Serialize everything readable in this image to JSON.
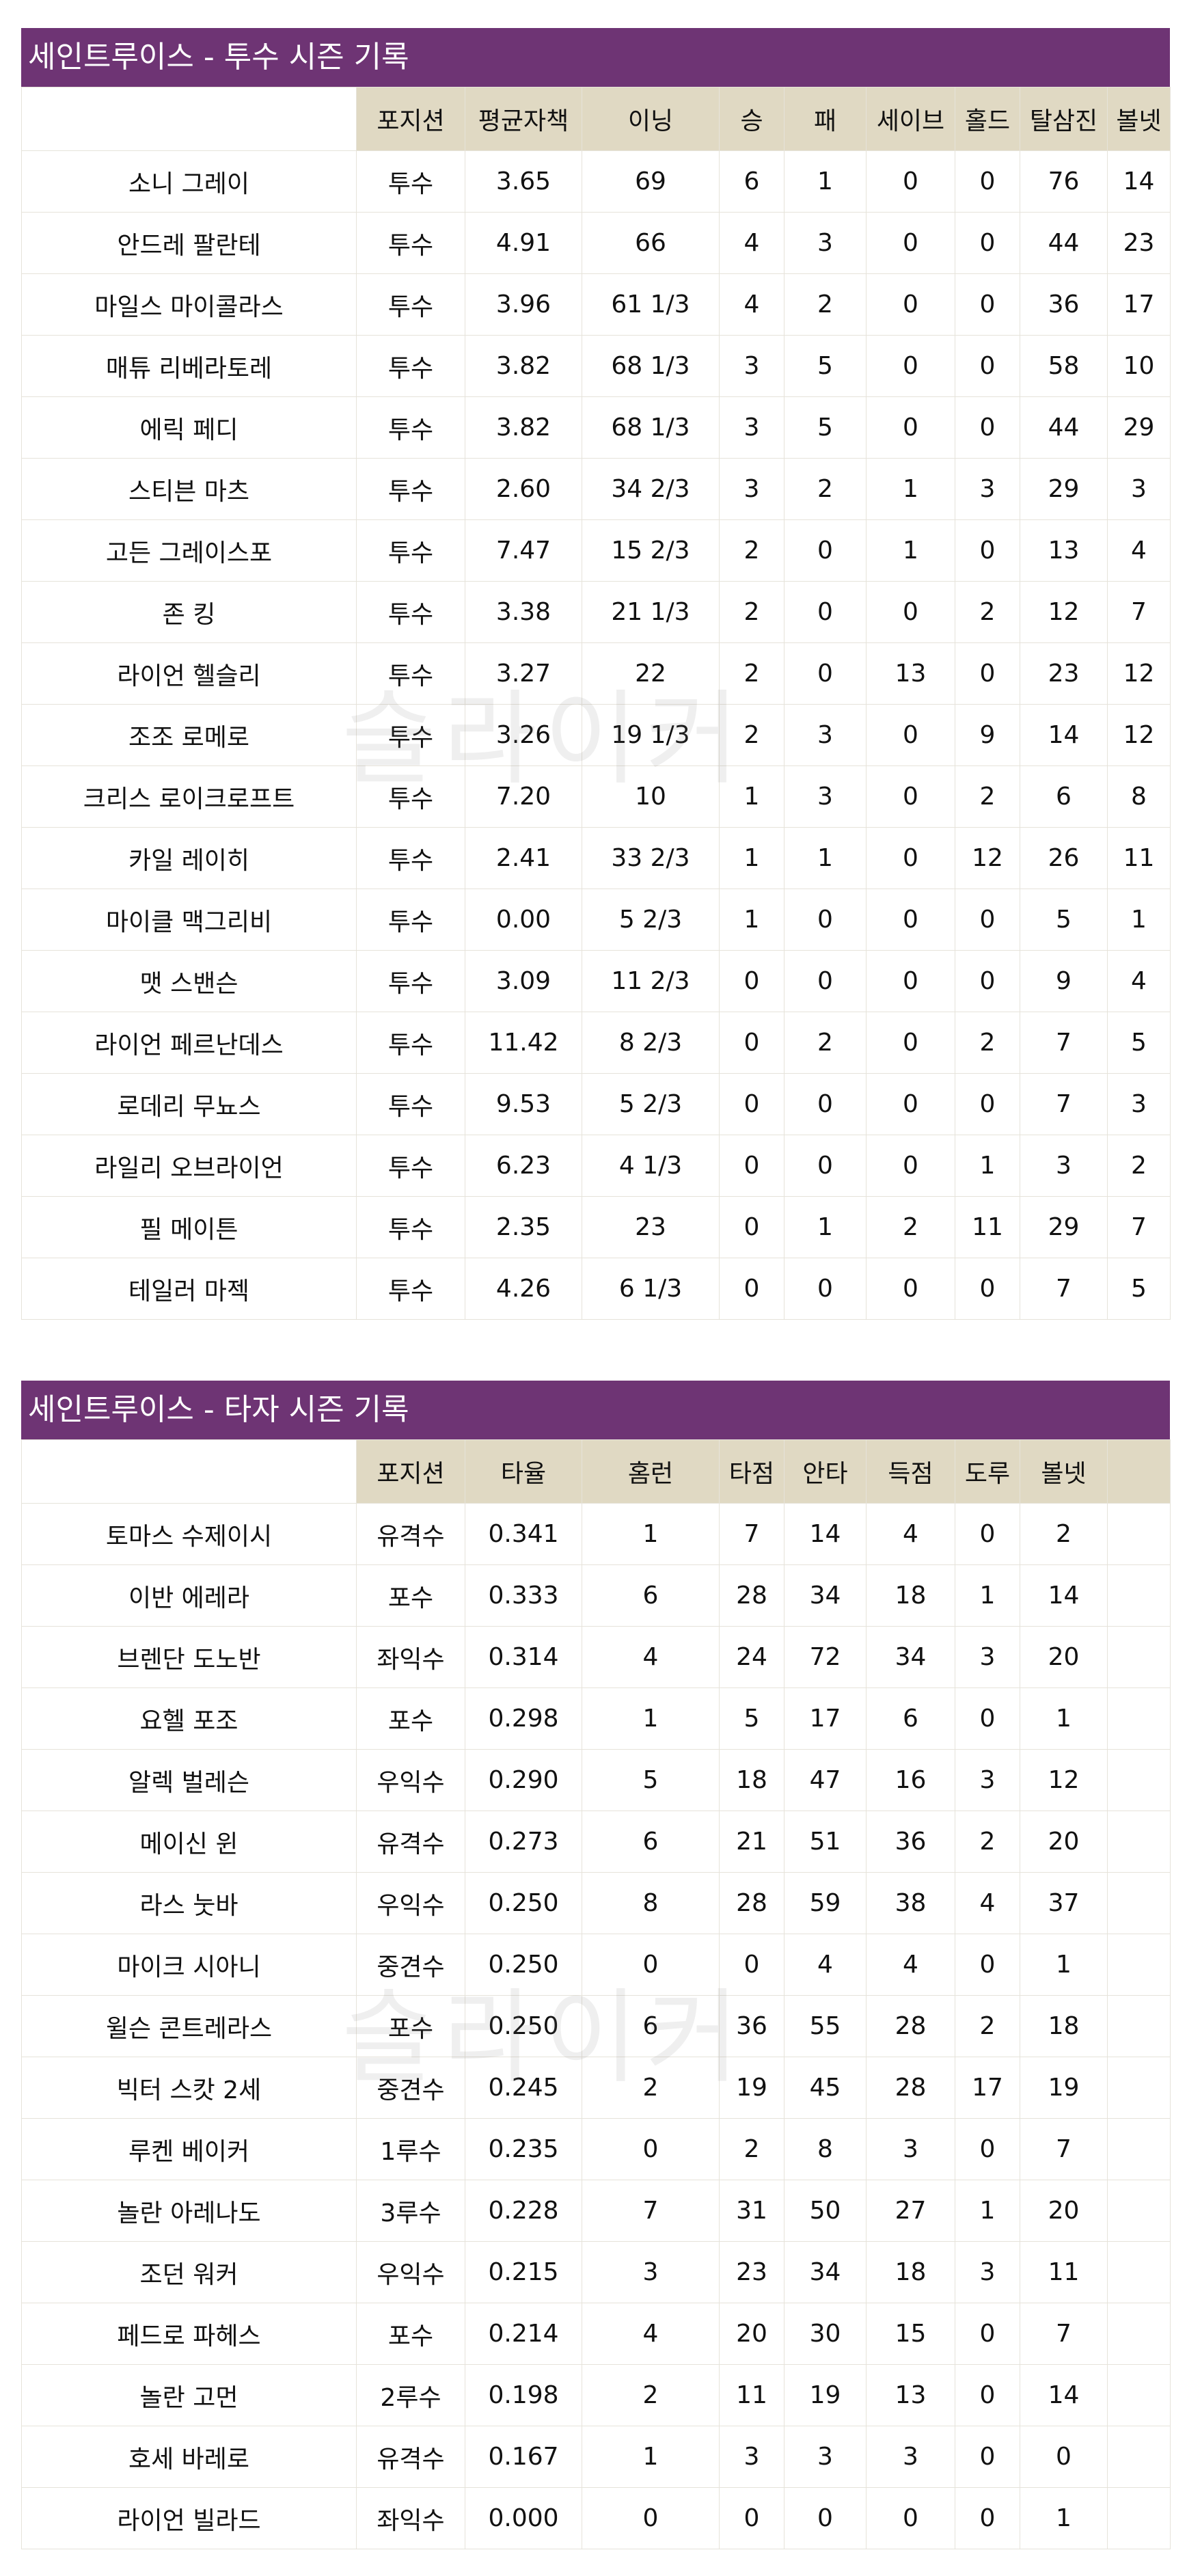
{
  "watermark": "슬라이커",
  "colors": {
    "title_bg": "#6e3474",
    "header_bg": "#e0d9c3",
    "grid": "#e6e3da"
  },
  "pitching": {
    "title": "세인트루이스 - 투수 시즌 기록",
    "columns": [
      "",
      "포지션",
      "평균자책",
      "이닝",
      "승",
      "패",
      "세이브",
      "홀드",
      "탈삼진",
      "볼넷"
    ],
    "rows": [
      [
        "소니 그레이",
        "투수",
        "3.65",
        "69",
        "6",
        "1",
        "0",
        "0",
        "76",
        "14"
      ],
      [
        "안드레 팔란테",
        "투수",
        "4.91",
        "66",
        "4",
        "3",
        "0",
        "0",
        "44",
        "23"
      ],
      [
        "마일스 마이콜라스",
        "투수",
        "3.96",
        "61 1/3",
        "4",
        "2",
        "0",
        "0",
        "36",
        "17"
      ],
      [
        "매튜 리베라토레",
        "투수",
        "3.82",
        "68 1/3",
        "3",
        "5",
        "0",
        "0",
        "58",
        "10"
      ],
      [
        "에릭 페디",
        "투수",
        "3.82",
        "68 1/3",
        "3",
        "5",
        "0",
        "0",
        "44",
        "29"
      ],
      [
        "스티븐 마츠",
        "투수",
        "2.60",
        "34 2/3",
        "3",
        "2",
        "1",
        "3",
        "29",
        "3"
      ],
      [
        "고든 그레이스포",
        "투수",
        "7.47",
        "15 2/3",
        "2",
        "0",
        "1",
        "0",
        "13",
        "4"
      ],
      [
        "존 킹",
        "투수",
        "3.38",
        "21 1/3",
        "2",
        "0",
        "0",
        "2",
        "12",
        "7"
      ],
      [
        "라이언 헬슬리",
        "투수",
        "3.27",
        "22",
        "2",
        "0",
        "13",
        "0",
        "23",
        "12"
      ],
      [
        "조조 로메로",
        "투수",
        "3.26",
        "19 1/3",
        "2",
        "3",
        "0",
        "9",
        "14",
        "12"
      ],
      [
        "크리스 로이크로프트",
        "투수",
        "7.20",
        "10",
        "1",
        "3",
        "0",
        "2",
        "6",
        "8"
      ],
      [
        "카일 레이히",
        "투수",
        "2.41",
        "33 2/3",
        "1",
        "1",
        "0",
        "12",
        "26",
        "11"
      ],
      [
        "마이클 맥그리비",
        "투수",
        "0.00",
        "5 2/3",
        "1",
        "0",
        "0",
        "0",
        "5",
        "1"
      ],
      [
        "맷 스밴슨",
        "투수",
        "3.09",
        "11 2/3",
        "0",
        "0",
        "0",
        "0",
        "9",
        "4"
      ],
      [
        "라이언 페르난데스",
        "투수",
        "11.42",
        "8 2/3",
        "0",
        "2",
        "0",
        "2",
        "7",
        "5"
      ],
      [
        "로데리 무뇨스",
        "투수",
        "9.53",
        "5 2/3",
        "0",
        "0",
        "0",
        "0",
        "7",
        "3"
      ],
      [
        "라일리 오브라이언",
        "투수",
        "6.23",
        "4 1/3",
        "0",
        "0",
        "0",
        "1",
        "3",
        "2"
      ],
      [
        "필 메이튼",
        "투수",
        "2.35",
        "23",
        "0",
        "1",
        "2",
        "11",
        "29",
        "7"
      ],
      [
        "테일러 마젝",
        "투수",
        "4.26",
        "6 1/3",
        "0",
        "0",
        "0",
        "0",
        "7",
        "5"
      ]
    ]
  },
  "batting": {
    "title": "세인트루이스 - 타자 시즌 기록",
    "columns": [
      "",
      "포지션",
      "타율",
      "홈런",
      "타점",
      "안타",
      "득점",
      "도루",
      "볼넷",
      ""
    ],
    "rows": [
      [
        "토마스 수제이시",
        "유격수",
        "0.341",
        "1",
        "7",
        "14",
        "4",
        "0",
        "2",
        ""
      ],
      [
        "이반 에레라",
        "포수",
        "0.333",
        "6",
        "28",
        "34",
        "18",
        "1",
        "14",
        ""
      ],
      [
        "브렌단 도노반",
        "좌익수",
        "0.314",
        "4",
        "24",
        "72",
        "34",
        "3",
        "20",
        ""
      ],
      [
        "요헬 포조",
        "포수",
        "0.298",
        "1",
        "5",
        "17",
        "6",
        "0",
        "1",
        ""
      ],
      [
        "알렉 벌레슨",
        "우익수",
        "0.290",
        "5",
        "18",
        "47",
        "16",
        "3",
        "12",
        ""
      ],
      [
        "메이신 윈",
        "유격수",
        "0.273",
        "6",
        "21",
        "51",
        "36",
        "2",
        "20",
        ""
      ],
      [
        "라스 눗바",
        "우익수",
        "0.250",
        "8",
        "28",
        "59",
        "38",
        "4",
        "37",
        ""
      ],
      [
        "마이크 시아니",
        "중견수",
        "0.250",
        "0",
        "0",
        "4",
        "4",
        "0",
        "1",
        ""
      ],
      [
        "윌슨 콘트레라스",
        "포수",
        "0.250",
        "6",
        "36",
        "55",
        "28",
        "2",
        "18",
        ""
      ],
      [
        "빅터 스캇 2세",
        "중견수",
        "0.245",
        "2",
        "19",
        "45",
        "28",
        "17",
        "19",
        ""
      ],
      [
        "루켄 베이커",
        "1루수",
        "0.235",
        "0",
        "2",
        "8",
        "3",
        "0",
        "7",
        ""
      ],
      [
        "놀란 아레나도",
        "3루수",
        "0.228",
        "7",
        "31",
        "50",
        "27",
        "1",
        "20",
        ""
      ],
      [
        "조던 워커",
        "우익수",
        "0.215",
        "3",
        "23",
        "34",
        "18",
        "3",
        "11",
        ""
      ],
      [
        "페드로 파헤스",
        "포수",
        "0.214",
        "4",
        "20",
        "30",
        "15",
        "0",
        "7",
        ""
      ],
      [
        "놀란 고먼",
        "2루수",
        "0.198",
        "2",
        "11",
        "19",
        "13",
        "0",
        "14",
        ""
      ],
      [
        "호세 바레로",
        "유격수",
        "0.167",
        "1",
        "3",
        "3",
        "3",
        "0",
        "0",
        ""
      ],
      [
        "라이언 빌라드",
        "좌익수",
        "0.000",
        "0",
        "0",
        "0",
        "0",
        "0",
        "1",
        ""
      ]
    ]
  }
}
